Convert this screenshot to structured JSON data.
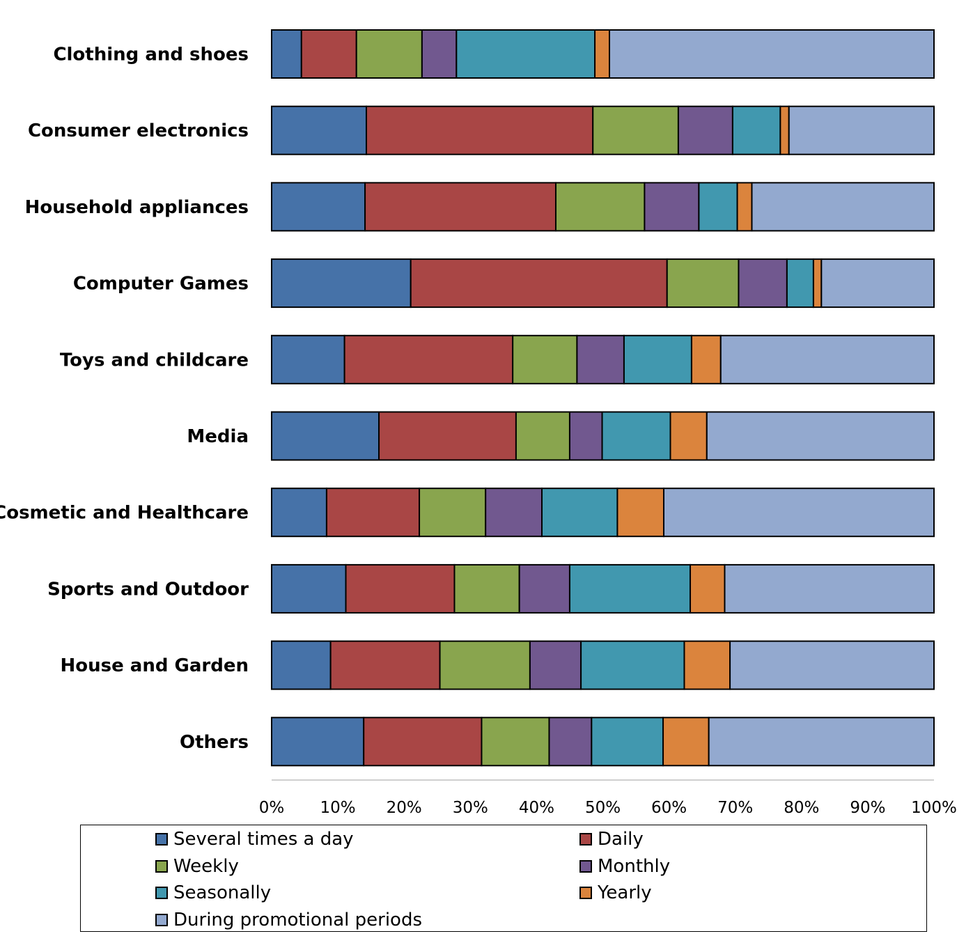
{
  "chart_data": {
    "type": "bar",
    "orientation": "horizontal",
    "stacked": "percent",
    "categories": [
      "Clothing and shoes",
      "Consumer electronics",
      "Household appliances",
      "Computer Games",
      "Toys and childcare",
      "Media",
      "Cosmetic and Healthcare",
      "Sports and Outdoor",
      "House and Garden",
      "Others"
    ],
    "series": [
      {
        "name": "Several times a day",
        "color": "#4672A8",
        "values": [
          4.5,
          14.3,
          14.1,
          21.0,
          11.0,
          16.2,
          8.3,
          11.2,
          8.9,
          13.9
        ]
      },
      {
        "name": "Daily",
        "color": "#A94645",
        "values": [
          8.3,
          34.2,
          28.8,
          38.7,
          25.4,
          20.7,
          14.0,
          16.4,
          16.5,
          17.8
        ]
      },
      {
        "name": "Weekly",
        "color": "#89A54E",
        "values": [
          9.9,
          12.9,
          13.4,
          10.8,
          9.7,
          8.1,
          10.0,
          9.8,
          13.6,
          10.2
        ]
      },
      {
        "name": "Monthly",
        "color": "#71588F",
        "values": [
          5.2,
          8.2,
          8.2,
          7.3,
          7.1,
          4.9,
          8.5,
          7.6,
          7.7,
          6.4
        ]
      },
      {
        "name": "Seasonally",
        "color": "#4198AF",
        "values": [
          20.9,
          7.2,
          5.8,
          4.0,
          10.2,
          10.3,
          11.4,
          18.2,
          15.6,
          10.8
        ]
      },
      {
        "name": "Yearly",
        "color": "#DB843D",
        "values": [
          2.2,
          1.3,
          2.2,
          1.2,
          4.4,
          5.5,
          7.0,
          5.2,
          6.9,
          6.9
        ]
      },
      {
        "name": "During promotional periods",
        "color": "#93A9CF",
        "values": [
          49.0,
          21.9,
          27.5,
          17.0,
          32.2,
          34.3,
          40.8,
          31.6,
          30.8,
          34.0
        ]
      }
    ],
    "xlim": [
      0,
      100
    ],
    "xticks": [
      "0%",
      "10%",
      "20%",
      "30%",
      "40%",
      "50%",
      "60%",
      "70%",
      "80%",
      "90%",
      "100%"
    ],
    "title": "",
    "xlabel": "",
    "ylabel": "",
    "grid": false,
    "legend_position": "bottom"
  }
}
